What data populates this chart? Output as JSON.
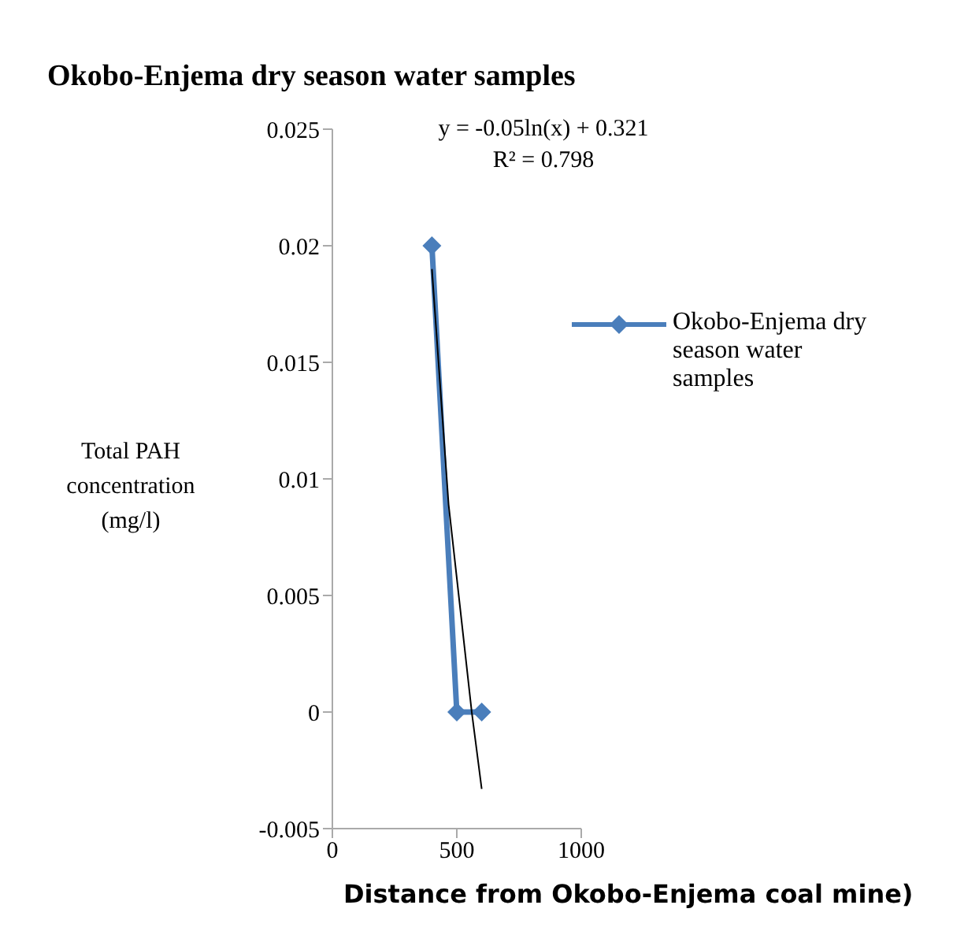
{
  "chart_data": {
    "type": "line",
    "title": "Okobo-Enjema dry season water samples",
    "xlabel": "Distance from Okobo-Enjema coal mine)",
    "ylabel": "Total PAH concentration (mg/l)",
    "series": [
      {
        "name": "Okobo-Enjema dry season water samples",
        "color": "#4a7ebb",
        "x": [
          400,
          500,
          600
        ],
        "values": [
          0.02,
          0,
          0
        ],
        "marker": "diamond"
      },
      {
        "type": "line",
        "color": "#000000",
        "x": [
          400,
          467,
          560,
          600
        ],
        "values": [
          0.019,
          0.0089,
          0,
          -0.0033
        ],
        "marker": "none"
      }
    ],
    "annotations": [
      "y = -0.05ln(x) + 0.321",
      "R² = 0.798"
    ],
    "xlim": [
      0,
      1000
    ],
    "xticks": [
      0,
      500,
      1000
    ],
    "ylim": [
      -0.005,
      0.025
    ],
    "yticks": [
      -0.005,
      0,
      0.005,
      0.01,
      0.015,
      0.02,
      0.025
    ],
    "grid": false,
    "legend": "right"
  }
}
